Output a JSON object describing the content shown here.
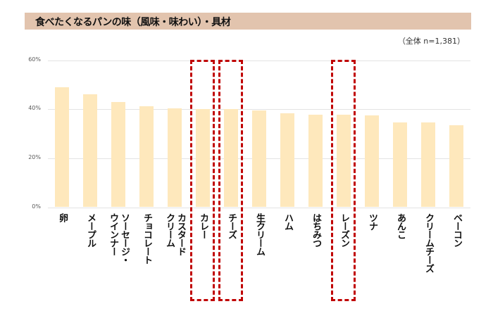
{
  "header": {
    "title": "食べたくなるパンの味（風味・味わい）・具材",
    "sample_note": "（全体 n=1,381）"
  },
  "colors": {
    "title_bg": "#E2C4AE",
    "bar": "#FEE8BC",
    "highlight": "#C00000",
    "grid": "#E3E3E3"
  },
  "chart_data": {
    "type": "bar",
    "title": "食べたくなるパンの味（風味・味わい）・具材",
    "subtitle": "（全体 n=1,381）",
    "xlabel": "",
    "ylabel": "",
    "ylim": [
      0,
      60
    ],
    "yticks": [
      "0%",
      "20%",
      "40%",
      "60%"
    ],
    "grid": true,
    "legend": "none",
    "categories": [
      "卵",
      "メープル",
      "ソーセージ・ウインナー",
      "チョコレート",
      "カスタードクリーム",
      "カレー",
      "チーズ",
      "生クリーム",
      "ハム",
      "はちみつ",
      "レーズン",
      "ツナ",
      "あんこ",
      "クリームチーズ",
      "ベーコン"
    ],
    "values": [
      49.1,
      46.2,
      43.0,
      41.2,
      40.4,
      40.0,
      40.0,
      39.4,
      38.3,
      37.8,
      37.8,
      37.4,
      34.7,
      34.5,
      33.4
    ],
    "highlighted": [
      "カレー",
      "チーズ",
      "レーズン"
    ]
  },
  "axis_labels": [
    "卵",
    "メープル",
    "ソーセージ・\nウインナー",
    "チョコレート",
    "カスタード\nクリーム",
    "カレー",
    "チーズ",
    "生クリーム",
    "ハム",
    "はちみつ",
    "レーズン",
    "ツナ",
    "あんこ",
    "クリームチーズ",
    "ベーコン"
  ]
}
